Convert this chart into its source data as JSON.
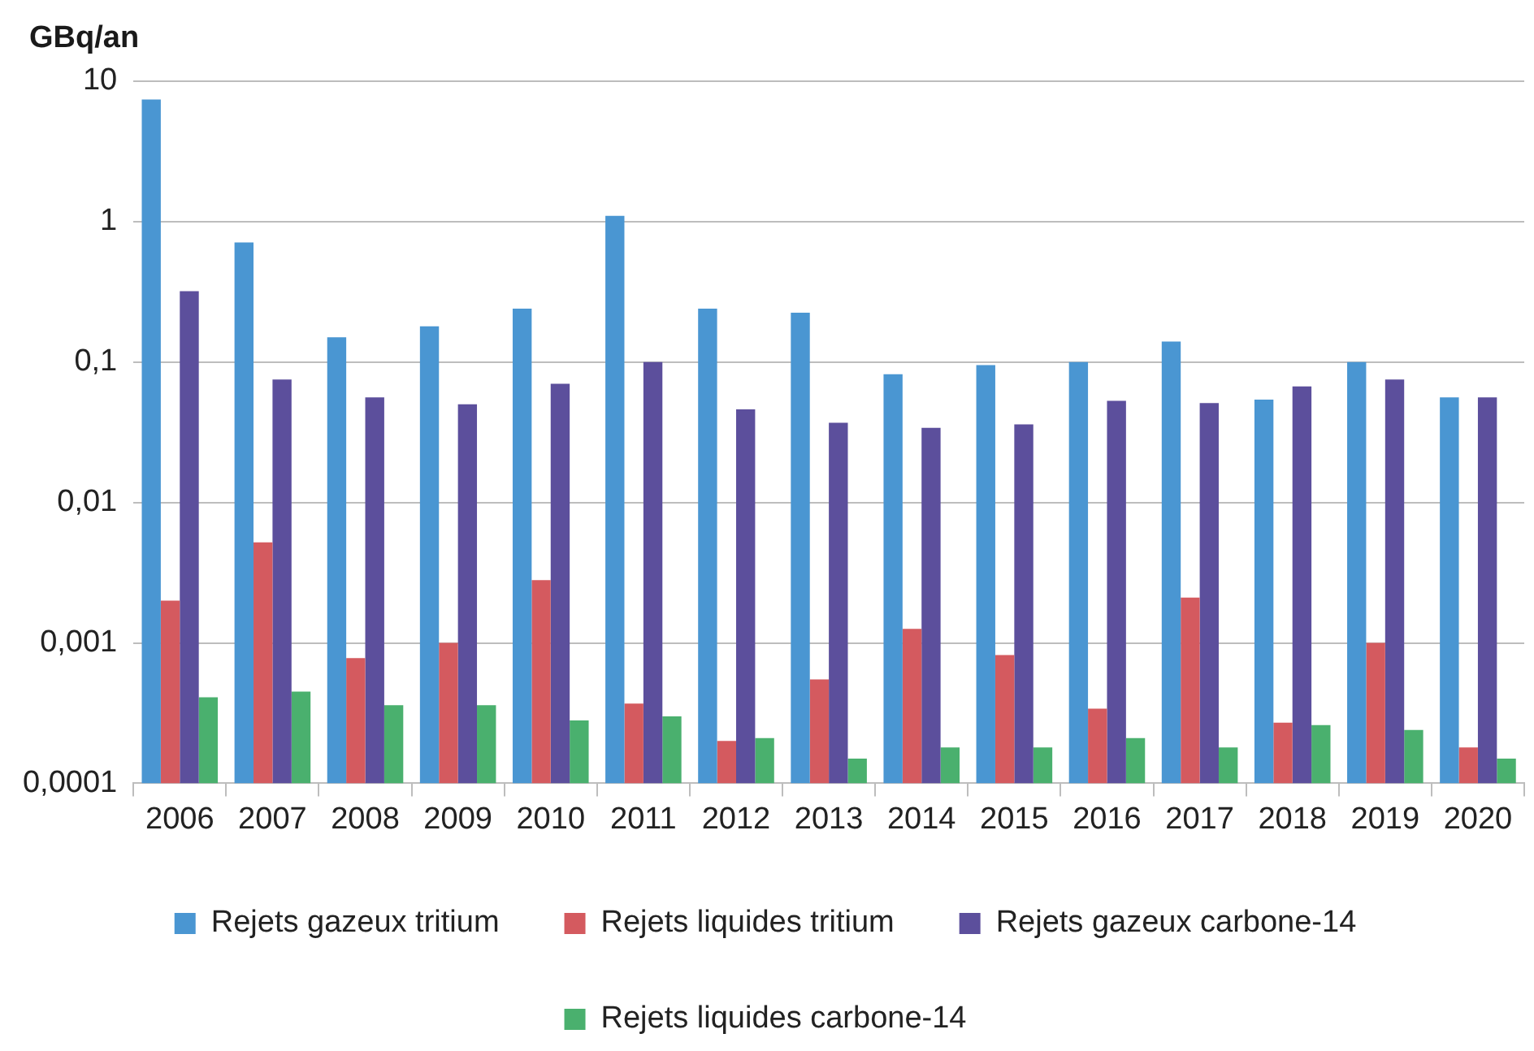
{
  "chart_data": {
    "type": "bar",
    "ylabel": "GBq/an",
    "log": "y",
    "grid": "y",
    "legend": "bottom",
    "categories": [
      "2006",
      "2007",
      "2008",
      "2009",
      "2010",
      "2011",
      "2012",
      "2013",
      "2014",
      "2015",
      "2016",
      "2017",
      "2018",
      "2019",
      "2020"
    ],
    "ylim": [
      0.0001,
      10
    ],
    "yticks": [
      {
        "value": 0.0001,
        "label": "0,0001"
      },
      {
        "value": 0.001,
        "label": "0,001"
      },
      {
        "value": 0.01,
        "label": "0,01"
      },
      {
        "value": 0.1,
        "label": "0,1"
      },
      1,
      10
    ],
    "series": [
      {
        "name": "Rejets gazeux tritium",
        "color": "#4a96d2",
        "values": [
          7.4,
          0.71,
          0.15,
          0.18,
          0.24,
          1.1,
          0.24,
          0.225,
          0.082,
          0.095,
          0.1,
          0.14,
          0.054,
          0.1,
          0.056
        ]
      },
      {
        "name": "Rejets liquides tritium",
        "color": "#d45a5f",
        "values": [
          0.002,
          0.0052,
          0.00078,
          0.001,
          0.0028,
          0.00037,
          0.0002,
          0.00055,
          0.00126,
          0.00082,
          0.00034,
          0.0021,
          0.00027,
          0.001,
          0.00018
        ]
      },
      {
        "name": "Rejets gazeux carbone-14",
        "color": "#5c4f9c",
        "values": [
          0.32,
          0.075,
          0.056,
          0.05,
          0.07,
          0.1,
          0.046,
          0.037,
          0.034,
          0.036,
          0.053,
          0.051,
          0.067,
          0.075,
          0.056
        ]
      },
      {
        "name": "Rejets liquides carbone-14",
        "color": "#4ab06e",
        "values": [
          0.00041,
          0.00045,
          0.00036,
          0.00036,
          0.00028,
          0.0003,
          0.00021,
          0.00015,
          0.00018,
          0.00018,
          0.00021,
          0.00018,
          0.00026,
          0.00024,
          0.00015
        ]
      }
    ]
  }
}
